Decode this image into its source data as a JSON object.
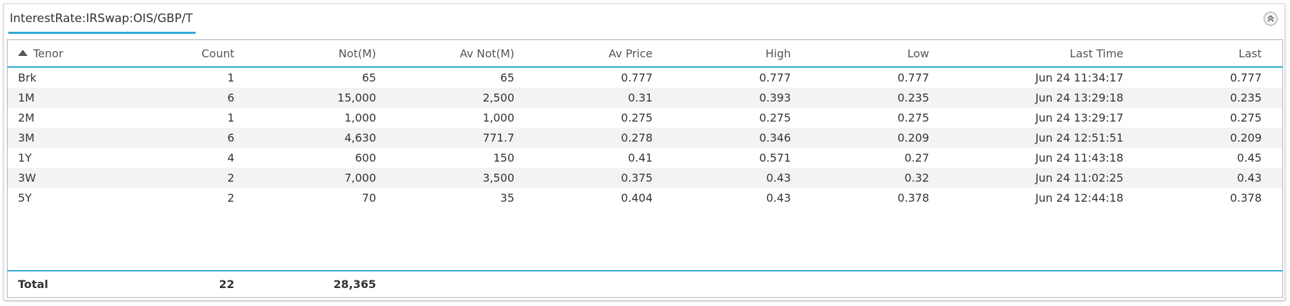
{
  "panel": {
    "title": "InterestRate:IRSwap:OIS/GBP/T",
    "accent_color": "#2aa9d3",
    "collapse_icon": "collapse-up-icon"
  },
  "table": {
    "columns": {
      "tenor": "Tenor",
      "count": "Count",
      "not": "Not(M)",
      "av_not": "Av Not(M)",
      "av_price": "Av Price",
      "high": "High",
      "low": "Low",
      "last_time": "Last Time",
      "last": "Last"
    },
    "sort": {
      "column": "Tenor",
      "direction": "ascending",
      "icon": "sort-ascending-icon"
    },
    "rows": [
      {
        "tenor": "Brk",
        "count": "1",
        "not": "65",
        "av_not": "65",
        "av_price": "0.777",
        "high": "0.777",
        "low": "0.777",
        "last_time": "Jun 24 11:34:17",
        "last": "0.777"
      },
      {
        "tenor": "1M",
        "count": "6",
        "not": "15,000",
        "av_not": "2,500",
        "av_price": "0.31",
        "high": "0.393",
        "low": "0.235",
        "last_time": "Jun 24 13:29:18",
        "last": "0.235"
      },
      {
        "tenor": "2M",
        "count": "1",
        "not": "1,000",
        "av_not": "1,000",
        "av_price": "0.275",
        "high": "0.275",
        "low": "0.275",
        "last_time": "Jun 24 13:29:17",
        "last": "0.275"
      },
      {
        "tenor": "3M",
        "count": "6",
        "not": "4,630",
        "av_not": "771.7",
        "av_price": "0.278",
        "high": "0.346",
        "low": "0.209",
        "last_time": "Jun 24 12:51:51",
        "last": "0.209"
      },
      {
        "tenor": "1Y",
        "count": "4",
        "not": "600",
        "av_not": "150",
        "av_price": "0.41",
        "high": "0.571",
        "low": "0.27",
        "last_time": "Jun 24 11:43:18",
        "last": "0.45"
      },
      {
        "tenor": "3W",
        "count": "2",
        "not": "7,000",
        "av_not": "3,500",
        "av_price": "0.375",
        "high": "0.43",
        "low": "0.32",
        "last_time": "Jun 24 11:02:25",
        "last": "0.43"
      },
      {
        "tenor": "5Y",
        "count": "2",
        "not": "70",
        "av_not": "35",
        "av_price": "0.404",
        "high": "0.43",
        "low": "0.378",
        "last_time": "Jun 24 12:44:18",
        "last": "0.378"
      }
    ],
    "total": {
      "label": "Total",
      "count": "22",
      "not": "28,365"
    }
  }
}
